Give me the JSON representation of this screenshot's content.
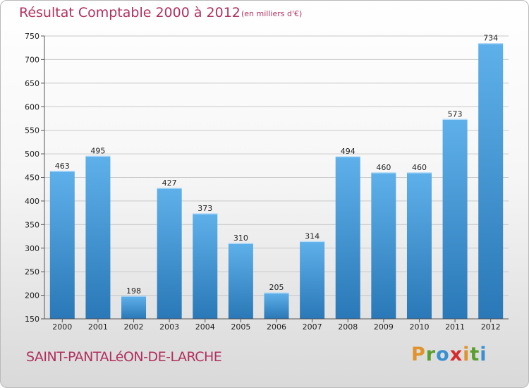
{
  "header": {
    "title": "Résultat Comptable 2000 à 2012",
    "unit": "(en milliers d'€)"
  },
  "footer": {
    "commune": "SAINT-PANTALéON-DE-LARCHE",
    "logo": [
      "P",
      "r",
      "o",
      "x",
      "i",
      "t",
      "i"
    ]
  },
  "colors": {
    "bar_light": "#5eb0ea",
    "bar_dark": "#2a78b7",
    "title": "#b0305e",
    "logo": [
      "#e0922c",
      "#5a9e2e",
      "#3a8fd0",
      "#d92b2b",
      "#e0922c",
      "#5a9e2e",
      "#3a8fd0"
    ]
  },
  "chart_data": {
    "type": "bar",
    "title": "Résultat Comptable 2000 à 2012",
    "xlabel": "",
    "ylabel": "",
    "categories": [
      "2000",
      "2001",
      "2002",
      "2003",
      "2004",
      "2005",
      "2006",
      "2007",
      "2008",
      "2009",
      "2010",
      "2011",
      "2012"
    ],
    "values": [
      463,
      495,
      198,
      427,
      373,
      310,
      205,
      314,
      494,
      460,
      460,
      573,
      734
    ],
    "ylim": [
      150,
      750
    ],
    "yticks": [
      150,
      200,
      250,
      300,
      350,
      400,
      450,
      500,
      550,
      600,
      650,
      700,
      750
    ],
    "grid": true
  }
}
